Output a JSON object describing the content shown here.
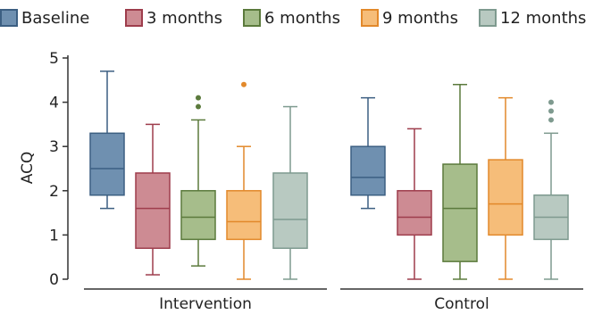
{
  "chart_data": {
    "type": "box",
    "ylabel": "ACQ",
    "ylim": [
      0,
      5
    ],
    "yticks": [
      "0",
      "1",
      "2",
      "3",
      "4",
      "5"
    ],
    "legend_position": "top",
    "series": [
      {
        "name": "Baseline",
        "fill": "#6f90b0",
        "stroke": "#3c5f82"
      },
      {
        "name": "3 months",
        "fill": "#cd8b93",
        "stroke": "#9e3d4c"
      },
      {
        "name": "6 months",
        "fill": "#a6bd8b",
        "stroke": "#5b7a3c"
      },
      {
        "name": "9 months",
        "fill": "#f6bd79",
        "stroke": "#e2892b"
      },
      {
        "name": "12 months",
        "fill": "#b8c9c1",
        "stroke": "#7e9a8f"
      }
    ],
    "groups": [
      {
        "name": "Intervention",
        "boxes": [
          {
            "min": 1.6,
            "q1": 1.9,
            "median": 2.5,
            "q3": 3.3,
            "max": 4.7,
            "outliers": []
          },
          {
            "min": 0.1,
            "q1": 0.7,
            "median": 1.6,
            "q3": 2.4,
            "max": 3.5,
            "outliers": []
          },
          {
            "min": 0.3,
            "q1": 0.9,
            "median": 1.4,
            "q3": 2.0,
            "max": 3.6,
            "outliers": [
              3.9,
              4.1
            ]
          },
          {
            "min": 0.0,
            "q1": 0.9,
            "median": 1.3,
            "q3": 2.0,
            "max": 3.0,
            "outliers": [
              4.4
            ]
          },
          {
            "min": 0.0,
            "q1": 0.7,
            "median": 1.35,
            "q3": 2.4,
            "max": 3.9,
            "outliers": []
          }
        ]
      },
      {
        "name": "Control",
        "boxes": [
          {
            "min": 1.6,
            "q1": 1.9,
            "median": 2.3,
            "q3": 3.0,
            "max": 4.1,
            "outliers": []
          },
          {
            "min": 0.0,
            "q1": 1.0,
            "median": 1.4,
            "q3": 2.0,
            "max": 3.4,
            "outliers": []
          },
          {
            "min": 0.0,
            "q1": 0.4,
            "median": 1.6,
            "q3": 2.6,
            "max": 4.4,
            "outliers": []
          },
          {
            "min": 0.0,
            "q1": 1.0,
            "median": 1.7,
            "q3": 2.7,
            "max": 4.1,
            "outliers": []
          },
          {
            "min": 0.0,
            "q1": 0.9,
            "median": 1.4,
            "q3": 1.9,
            "max": 3.3,
            "outliers": [
              3.6,
              3.8,
              4.0
            ]
          }
        ]
      }
    ]
  }
}
